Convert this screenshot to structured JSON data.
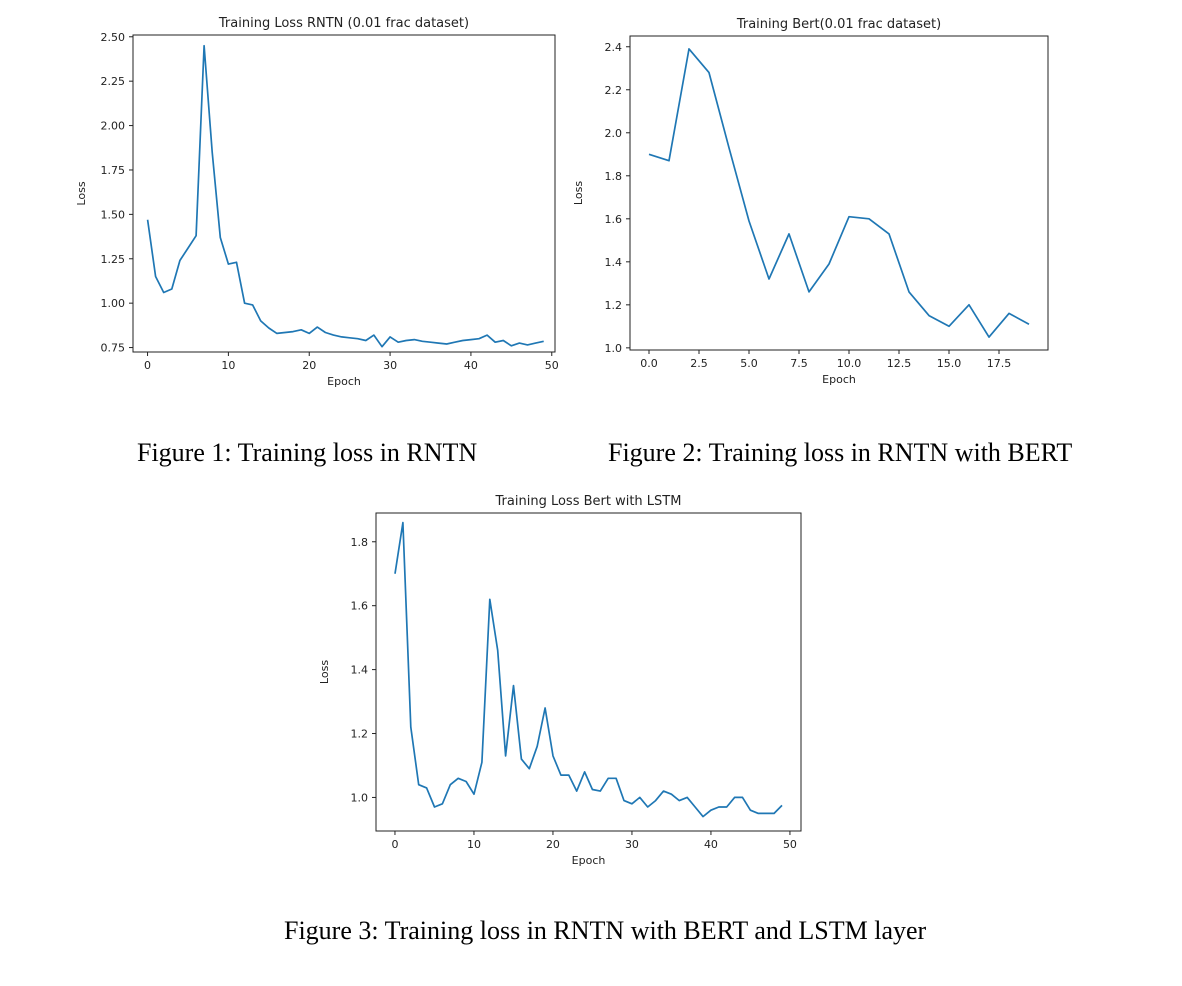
{
  "figures": [
    {
      "caption": "Figure 1: Training loss in RNTN",
      "chart_data": {
        "type": "line",
        "title": "Training Loss RNTN (0.01 frac dataset)",
        "xlabel": "Epoch",
        "ylabel": "Loss",
        "xlim": [
          -1.8,
          50.4
        ],
        "ylim": [
          0.725,
          2.51
        ],
        "x_ticks": [
          0,
          10,
          20,
          30,
          40,
          50
        ],
        "x_tick_labels": [
          "0",
          "10",
          "20",
          "30",
          "40",
          "50"
        ],
        "y_ticks": [
          0.75,
          1.0,
          1.25,
          1.5,
          1.75,
          2.0,
          2.25,
          2.5
        ],
        "y_tick_labels": [
          "0.75",
          "1.00",
          "1.25",
          "1.50",
          "1.75",
          "2.00",
          "2.25",
          "2.50"
        ],
        "grid": false,
        "line_color": "#1f77b4",
        "series": [
          {
            "x": [
              0,
              1,
              2,
              3,
              4,
              5,
              6,
              7,
              8,
              9,
              10,
              11,
              12,
              13,
              14,
              15,
              16,
              17,
              18,
              19,
              20,
              21,
              22,
              23,
              24,
              25,
              26,
              27,
              28,
              29,
              30,
              31,
              32,
              33,
              34,
              35,
              36,
              37,
              38,
              39,
              40,
              41,
              42,
              43,
              44,
              45,
              46,
              47,
              48,
              49
            ],
            "y": [
              1.47,
              1.15,
              1.06,
              1.08,
              1.24,
              1.31,
              1.38,
              2.45,
              1.85,
              1.37,
              1.22,
              1.23,
              1.0,
              0.99,
              0.9,
              0.86,
              0.83,
              0.835,
              0.84,
              0.85,
              0.83,
              0.865,
              0.835,
              0.82,
              0.81,
              0.805,
              0.8,
              0.79,
              0.82,
              0.755,
              0.81,
              0.78,
              0.79,
              0.795,
              0.785,
              0.78,
              0.775,
              0.77,
              0.78,
              0.79,
              0.795,
              0.8,
              0.82,
              0.78,
              0.79,
              0.76,
              0.775,
              0.765,
              0.775,
              0.785
            ]
          }
        ]
      }
    },
    {
      "caption": "Figure 2: Training loss in RNTN with BERT",
      "chart_data": {
        "type": "line",
        "title": "Training Bert(0.01 frac dataset)",
        "xlabel": "Epoch",
        "ylabel": "Loss",
        "xlim": [
          -0.95,
          19.95
        ],
        "ylim": [
          0.99,
          2.45
        ],
        "x_ticks": [
          0,
          2.5,
          5,
          7.5,
          10,
          12.5,
          15,
          17.5
        ],
        "x_tick_labels": [
          "0.0",
          "2.5",
          "5.0",
          "7.5",
          "10.0",
          "12.5",
          "15.0",
          "17.5"
        ],
        "y_ticks": [
          1.0,
          1.2,
          1.4,
          1.6,
          1.8,
          2.0,
          2.2,
          2.4
        ],
        "y_tick_labels": [
          "1.0",
          "1.2",
          "1.4",
          "1.6",
          "1.8",
          "2.0",
          "2.2",
          "2.4"
        ],
        "grid": false,
        "line_color": "#1f77b4",
        "series": [
          {
            "x": [
              0,
              1,
              2,
              3,
              4,
              5,
              6,
              7,
              8,
              9,
              10,
              11,
              12,
              13,
              14,
              15,
              16,
              17,
              18,
              19
            ],
            "y": [
              1.9,
              1.87,
              2.39,
              2.28,
              1.93,
              1.59,
              1.32,
              1.53,
              1.26,
              1.39,
              1.61,
              1.6,
              1.53,
              1.26,
              1.15,
              1.1,
              1.2,
              1.05,
              1.16,
              1.11
            ]
          }
        ]
      }
    },
    {
      "caption": "Figure 3: Training loss in RNTN with BERT and LSTM layer",
      "chart_data": {
        "type": "line",
        "title": "Training Loss Bert with LSTM",
        "xlabel": "Epoch",
        "ylabel": "Loss",
        "xlim": [
          -2.4,
          51.4
        ],
        "ylim": [
          0.895,
          1.89
        ],
        "x_ticks": [
          0,
          10,
          20,
          30,
          40,
          50
        ],
        "x_tick_labels": [
          "0",
          "10",
          "20",
          "30",
          "40",
          "50"
        ],
        "y_ticks": [
          1.0,
          1.2,
          1.4,
          1.6,
          1.8
        ],
        "y_tick_labels": [
          "1.0",
          "1.2",
          "1.4",
          "1.6",
          "1.8"
        ],
        "grid": false,
        "line_color": "#1f77b4",
        "series": [
          {
            "x": [
              0,
              1,
              2,
              3,
              4,
              5,
              6,
              7,
              8,
              9,
              10,
              11,
              12,
              13,
              14,
              15,
              16,
              17,
              18,
              19,
              20,
              21,
              22,
              23,
              24,
              25,
              26,
              27,
              28,
              29,
              30,
              31,
              32,
              33,
              34,
              35,
              36,
              37,
              38,
              39,
              40,
              41,
              42,
              43,
              44,
              45,
              46,
              47,
              48,
              49
            ],
            "y": [
              1.7,
              1.86,
              1.22,
              1.04,
              1.03,
              0.97,
              0.98,
              1.04,
              1.06,
              1.05,
              1.01,
              1.11,
              1.62,
              1.46,
              1.13,
              1.35,
              1.12,
              1.09,
              1.16,
              1.28,
              1.13,
              1.07,
              1.07,
              1.02,
              1.08,
              1.025,
              1.02,
              1.06,
              1.06,
              0.99,
              0.98,
              1.0,
              0.97,
              0.99,
              1.02,
              1.01,
              0.99,
              1.0,
              0.97,
              0.94,
              0.96,
              0.97,
              0.97,
              1.0,
              1.0,
              0.96,
              0.95,
              0.95,
              0.95,
              0.975
            ]
          }
        ]
      }
    }
  ]
}
